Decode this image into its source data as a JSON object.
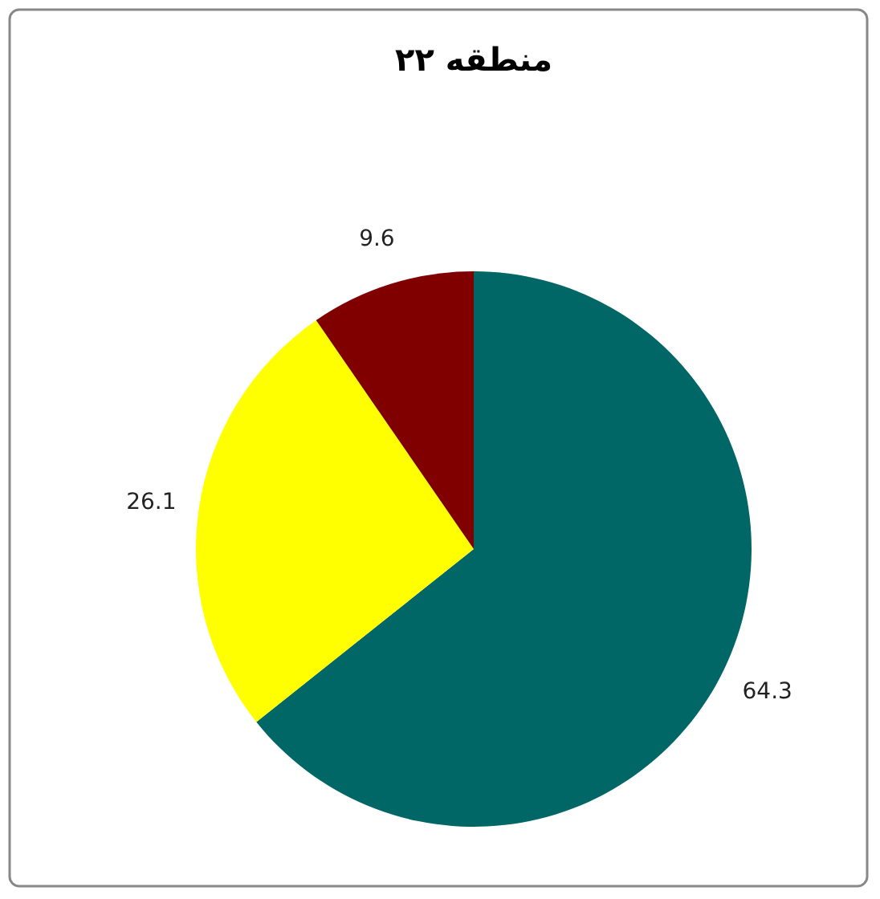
{
  "chart_data": {
    "type": "pie",
    "title": "منطقه ۲۲",
    "categories": [
      null,
      null,
      null
    ],
    "values": [
      64.3,
      26.1,
      9.6
    ],
    "colors": [
      "#006666",
      "#ffff00",
      "#800000"
    ],
    "data_labels": true
  }
}
